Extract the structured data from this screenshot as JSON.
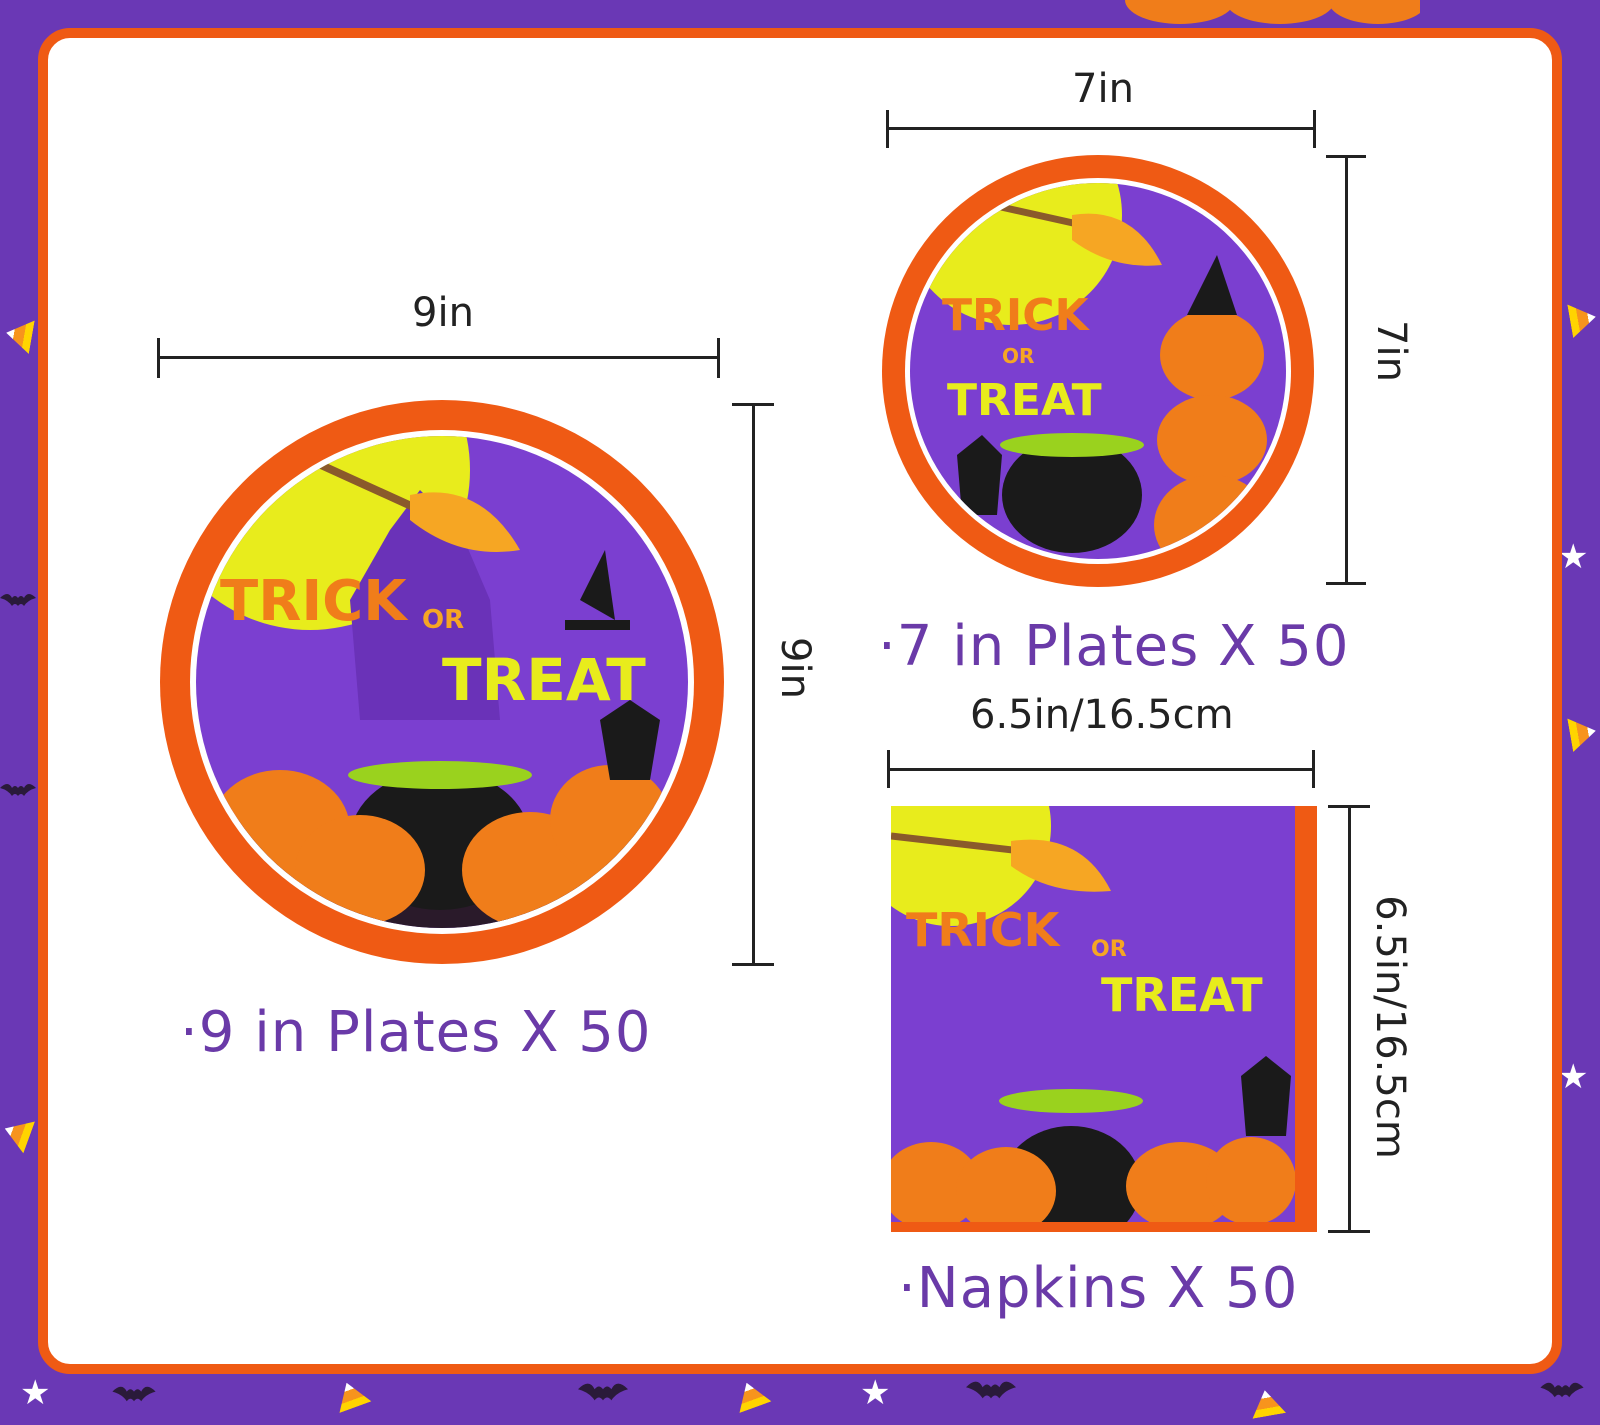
{
  "product": {
    "large_plate": {
      "width_label": "9in",
      "height_label": "9in",
      "caption": "·9 in Plates  X 50",
      "artwork_text": [
        "TRICK",
        "OR",
        "TREAT"
      ]
    },
    "small_plate": {
      "width_label": "7in",
      "height_label": "7in",
      "caption": "·7 in Plates  X 50",
      "artwork_text": [
        "TRICK",
        "OR",
        "TREAT"
      ]
    },
    "napkin": {
      "width_label": "6.5in/16.5cm",
      "height_label": "6.5in/16.5cm",
      "caption": "·Napkins  X 50",
      "artwork_text": [
        "TRICK",
        "OR",
        "TREAT"
      ]
    }
  },
  "colors": {
    "background_purple": "#6a38b5",
    "frame_orange": "#ef5a14",
    "caption_purple": "#6a3aa8",
    "plate_purple": "#7b3fd0",
    "moon_yellow": "#e8ec1c",
    "pumpkin_orange": "#f07d1a"
  },
  "icons": [
    "candy-corn-icon",
    "bat-icon",
    "star-icon",
    "pumpkin-icon",
    "witch-hat-icon",
    "broom-icon",
    "cauldron-icon",
    "black-cat-icon"
  ]
}
